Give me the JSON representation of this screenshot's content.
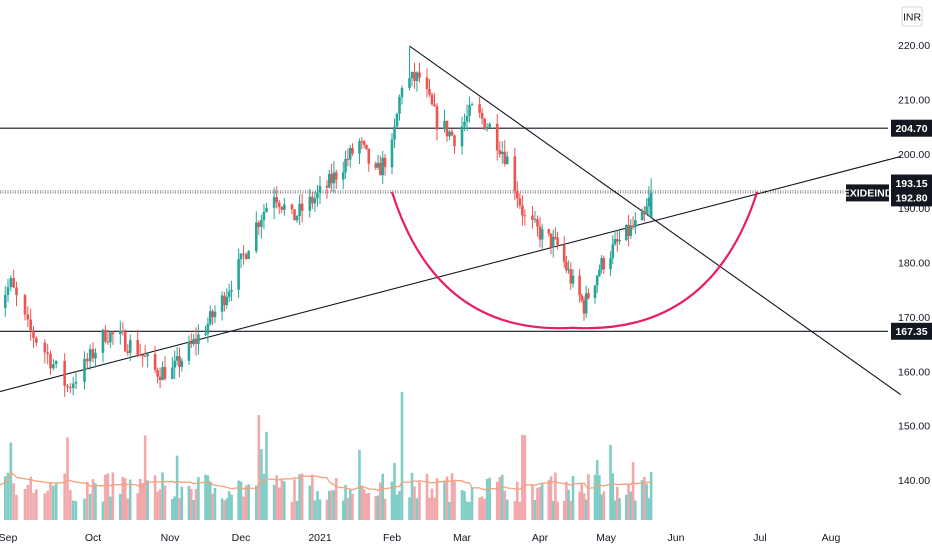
{
  "currency": "INR",
  "chart_data": {
    "type": "candlestick",
    "symbol": "EXIDEIND",
    "y_axis": {
      "ticks": [
        140,
        150,
        160,
        170,
        180,
        190,
        200,
        210,
        220
      ],
      "tick_labels": [
        "140.00",
        "150.00",
        "160.00",
        "170.00",
        "180.00",
        "190.00",
        "200.00",
        "210.00",
        "220.00"
      ],
      "range": [
        134,
        227
      ]
    },
    "x_axis": {
      "labels": [
        "Sep",
        "Oct",
        "Nov",
        "Dec",
        "2021",
        "Feb",
        "Mar",
        "Apr",
        "May",
        "Jun",
        "Jul",
        "Aug"
      ]
    },
    "price_labels": [
      {
        "name": "level-204",
        "value": 204.7,
        "label": "204.70",
        "bg": "#131722"
      },
      {
        "name": "level-193",
        "value": 193.15,
        "label": "193.15",
        "bg": "#131722"
      },
      {
        "name": "last-price",
        "value": 192.8,
        "label": "192.80",
        "bg": "#131722"
      },
      {
        "name": "level-167",
        "value": 167.35,
        "label": "167.35",
        "bg": "#131722"
      }
    ],
    "horizontal_levels": [
      204.7,
      167.35
    ],
    "dotted_levels": [
      193.15,
      192.8
    ],
    "trendlines": [
      {
        "name": "rising-support",
        "from": {
          "date": "2020-08-27",
          "price": 156.0
        },
        "to": {
          "date": "2021-08-31",
          "price": 199.5
        }
      },
      {
        "name": "falling-resistance",
        "from": {
          "date": "2021-02-08",
          "price": 219.8
        },
        "to": {
          "date": "2021-08-31",
          "price": 155.7
        }
      }
    ],
    "cup_pattern": {
      "from": {
        "date": "2021-02-01",
        "price": 193.0
      },
      "bottom": {
        "date": "2021-04-16",
        "price": 168.0
      },
      "to": {
        "date": "2021-06-30",
        "price": 193.0
      }
    },
    "colors": {
      "up": "#26a69a",
      "down": "#ef5350",
      "vol_up": "#7fcdc6",
      "vol_down": "#f2a7aa",
      "cup": "#e91e63",
      "vol_ma": "#f7a07c"
    },
    "series_rules": {
      "start_date": "2020-08-27",
      "end_date": "2021-05-21",
      "anchors": [
        [
          "2020-08-27",
          172
        ],
        [
          "2020-09-02",
          176
        ],
        [
          "2020-09-08",
          168
        ],
        [
          "2020-09-15",
          163
        ],
        [
          "2020-09-22",
          157
        ],
        [
          "2020-09-28",
          161
        ],
        [
          "2020-10-06",
          167
        ],
        [
          "2020-10-12",
          166
        ],
        [
          "2020-10-19",
          164
        ],
        [
          "2020-10-26",
          160
        ],
        [
          "2020-11-02",
          160
        ],
        [
          "2020-11-09",
          164
        ],
        [
          "2020-11-16",
          168
        ],
        [
          "2020-11-23",
          173
        ],
        [
          "2020-12-01",
          180
        ],
        [
          "2020-12-07",
          187
        ],
        [
          "2020-12-14",
          193
        ],
        [
          "2020-12-21",
          188
        ],
        [
          "2020-12-28",
          191
        ],
        [
          "2021-01-04",
          194
        ],
        [
          "2021-01-11",
          198
        ],
        [
          "2021-01-18",
          202
        ],
        [
          "2021-01-25",
          196
        ],
        [
          "2021-02-01",
          201
        ],
        [
          "2021-02-05",
          213
        ],
        [
          "2021-02-12",
          214
        ],
        [
          "2021-02-19",
          206
        ],
        [
          "2021-02-26",
          203
        ],
        [
          "2021-03-05",
          208
        ],
        [
          "2021-03-12",
          205
        ],
        [
          "2021-03-19",
          199
        ],
        [
          "2021-03-26",
          188
        ],
        [
          "2021-04-02",
          185
        ],
        [
          "2021-04-09",
          183
        ],
        [
          "2021-04-16",
          176
        ],
        [
          "2021-04-21",
          172
        ],
        [
          "2021-04-28",
          179
        ],
        [
          "2021-05-05",
          183
        ],
        [
          "2021-05-12",
          186
        ],
        [
          "2021-05-18",
          188
        ],
        [
          "2021-05-21",
          192.8
        ]
      ],
      "noise_amplitude": 1.8,
      "seed": 7
    },
    "volume_ma_shown": true
  }
}
